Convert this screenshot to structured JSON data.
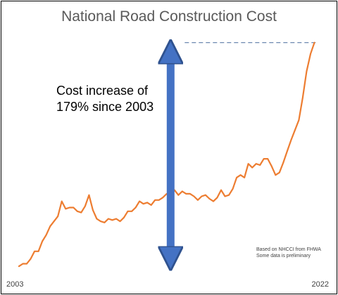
{
  "chart_data": {
    "type": "line",
    "title": "National Road Construction Cost",
    "xlabel": "",
    "ylabel": "",
    "x_tick_labels": [
      "2003",
      "2022"
    ],
    "xlim": [
      2003,
      2022.25
    ],
    "ylim": [
      0.95,
      2.85
    ],
    "grid": false,
    "legend": "none",
    "annotation": {
      "line1": "Cost increase of",
      "line2": "179% since 2003",
      "arrow_x": 2012.75,
      "arrow_from": 1.0,
      "arrow_to": 2.79,
      "reference_line_y": 2.79
    },
    "source_note": {
      "line1": "Based on NHCCI from FHWA",
      "line2": "Some data is preliminary"
    },
    "colors": {
      "line": "#ED7D31",
      "arrow": "#4472C4",
      "arrow_outline": "#2F528F",
      "dashed": "#5B7BA8",
      "title": "#595959"
    },
    "series": [
      {
        "values": [
          {
            "x": 2003.0,
            "y": 1.0
          },
          {
            "x": 2003.25,
            "y": 1.02
          },
          {
            "x": 2003.5,
            "y": 1.02
          },
          {
            "x": 2003.75,
            "y": 1.06
          },
          {
            "x": 2004.0,
            "y": 1.12
          },
          {
            "x": 2004.25,
            "y": 1.12
          },
          {
            "x": 2004.5,
            "y": 1.2
          },
          {
            "x": 2004.75,
            "y": 1.25
          },
          {
            "x": 2005.0,
            "y": 1.32
          },
          {
            "x": 2005.25,
            "y": 1.36
          },
          {
            "x": 2005.5,
            "y": 1.4
          },
          {
            "x": 2005.75,
            "y": 1.52
          },
          {
            "x": 2006.0,
            "y": 1.46
          },
          {
            "x": 2006.25,
            "y": 1.47
          },
          {
            "x": 2006.5,
            "y": 1.47
          },
          {
            "x": 2006.75,
            "y": 1.44
          },
          {
            "x": 2007.0,
            "y": 1.43
          },
          {
            "x": 2007.25,
            "y": 1.48
          },
          {
            "x": 2007.5,
            "y": 1.57
          },
          {
            "x": 2007.75,
            "y": 1.45
          },
          {
            "x": 2008.0,
            "y": 1.38
          },
          {
            "x": 2008.25,
            "y": 1.36
          },
          {
            "x": 2008.5,
            "y": 1.35
          },
          {
            "x": 2008.75,
            "y": 1.38
          },
          {
            "x": 2009.0,
            "y": 1.37
          },
          {
            "x": 2009.25,
            "y": 1.38
          },
          {
            "x": 2009.5,
            "y": 1.36
          },
          {
            "x": 2009.75,
            "y": 1.39
          },
          {
            "x": 2010.0,
            "y": 1.44
          },
          {
            "x": 2010.25,
            "y": 1.44
          },
          {
            "x": 2010.5,
            "y": 1.47
          },
          {
            "x": 2010.75,
            "y": 1.52
          },
          {
            "x": 2011.0,
            "y": 1.5
          },
          {
            "x": 2011.25,
            "y": 1.51
          },
          {
            "x": 2011.5,
            "y": 1.49
          },
          {
            "x": 2011.75,
            "y": 1.53
          },
          {
            "x": 2012.0,
            "y": 1.53
          },
          {
            "x": 2012.25,
            "y": 1.55
          },
          {
            "x": 2012.5,
            "y": 1.58
          },
          {
            "x": 2012.75,
            "y": 1.56
          },
          {
            "x": 2013.0,
            "y": 1.61
          },
          {
            "x": 2013.25,
            "y": 1.57
          },
          {
            "x": 2013.5,
            "y": 1.6
          },
          {
            "x": 2013.75,
            "y": 1.58
          },
          {
            "x": 2014.0,
            "y": 1.58
          },
          {
            "x": 2014.25,
            "y": 1.56
          },
          {
            "x": 2014.5,
            "y": 1.53
          },
          {
            "x": 2014.75,
            "y": 1.56
          },
          {
            "x": 2015.0,
            "y": 1.57
          },
          {
            "x": 2015.25,
            "y": 1.54
          },
          {
            "x": 2015.5,
            "y": 1.52
          },
          {
            "x": 2015.75,
            "y": 1.55
          },
          {
            "x": 2016.0,
            "y": 1.61
          },
          {
            "x": 2016.25,
            "y": 1.56
          },
          {
            "x": 2016.5,
            "y": 1.57
          },
          {
            "x": 2016.75,
            "y": 1.62
          },
          {
            "x": 2017.0,
            "y": 1.71
          },
          {
            "x": 2017.25,
            "y": 1.73
          },
          {
            "x": 2017.5,
            "y": 1.71
          },
          {
            "x": 2017.75,
            "y": 1.82
          },
          {
            "x": 2018.0,
            "y": 1.79
          },
          {
            "x": 2018.25,
            "y": 1.82
          },
          {
            "x": 2018.5,
            "y": 1.81
          },
          {
            "x": 2018.75,
            "y": 1.86
          },
          {
            "x": 2019.0,
            "y": 1.86
          },
          {
            "x": 2019.25,
            "y": 1.8
          },
          {
            "x": 2019.5,
            "y": 1.73
          },
          {
            "x": 2019.75,
            "y": 1.75
          },
          {
            "x": 2020.0,
            "y": 1.83
          },
          {
            "x": 2020.25,
            "y": 1.92
          },
          {
            "x": 2020.5,
            "y": 2.01
          },
          {
            "x": 2020.75,
            "y": 2.09
          },
          {
            "x": 2021.0,
            "y": 2.17
          },
          {
            "x": 2021.25,
            "y": 2.35
          },
          {
            "x": 2021.5,
            "y": 2.56
          },
          {
            "x": 2021.75,
            "y": 2.7
          },
          {
            "x": 2022.0,
            "y": 2.79
          }
        ]
      }
    ]
  }
}
